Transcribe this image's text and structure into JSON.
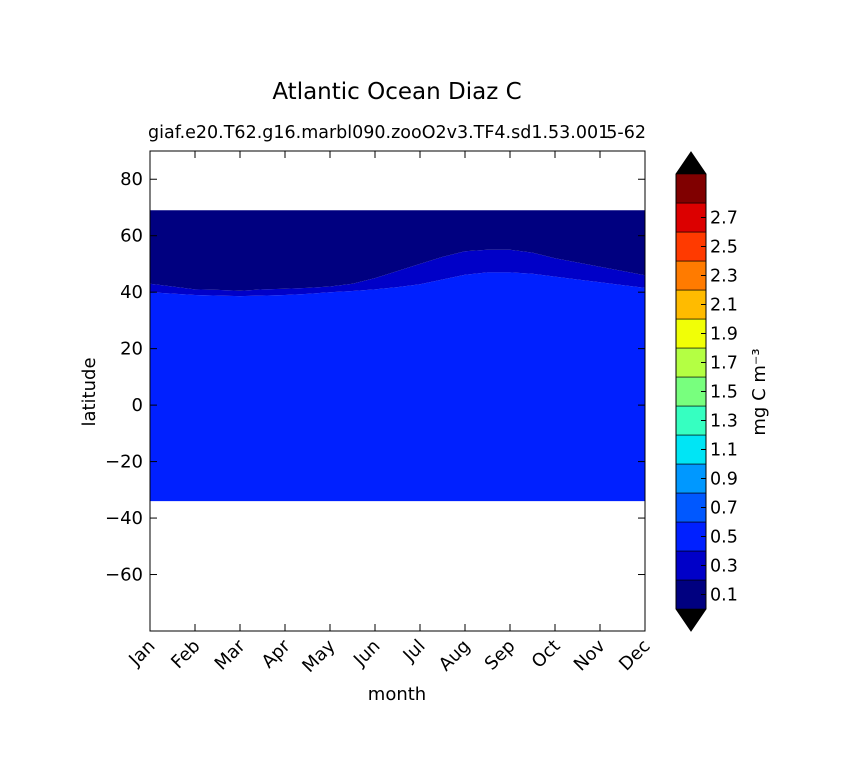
{
  "chart_data": {
    "type": "heatmap",
    "title": "Atlantic Ocean Diaz C",
    "subtitle_left": "giaf.e20.T62.g16.marbl090.zooO2v3.TF4.sd1.53.001",
    "subtitle_right": "5-62",
    "xlabel": "month",
    "ylabel": "latitude",
    "x_ticks": [
      "Jan",
      "Feb",
      "Mar",
      "Apr",
      "May",
      "Jun",
      "Jul",
      "Aug",
      "Sep",
      "Oct",
      "Nov",
      "Dec"
    ],
    "xlim": [
      0,
      11
    ],
    "ylim": [
      -80,
      90
    ],
    "y_ticks": [
      80,
      60,
      40,
      20,
      0,
      -20,
      -40,
      -60
    ],
    "y_tick_labels": [
      "80",
      "60",
      "40",
      "20",
      "0",
      "−20",
      "−40",
      "−60"
    ],
    "data_extent": {
      "lat_min": -34,
      "lat_max": 69
    },
    "fill_region": {
      "level": "0.3–0.5",
      "color": "#0020ff"
    },
    "boundary_region": {
      "level": "0.1–0.3",
      "color": "#0000c8",
      "upper_edge": [
        [
          0,
          43
        ],
        [
          0.5,
          42
        ],
        [
          1,
          41
        ],
        [
          1.5,
          40.8
        ],
        [
          2,
          40.5
        ],
        [
          2.5,
          41
        ],
        [
          3,
          41.2
        ],
        [
          3.5,
          41.5
        ],
        [
          4,
          42
        ],
        [
          4.5,
          43
        ],
        [
          5,
          45
        ],
        [
          5.5,
          47.5
        ],
        [
          6,
          50
        ],
        [
          6.5,
          52.5
        ],
        [
          7,
          54.5
        ],
        [
          7.5,
          55
        ],
        [
          8,
          55
        ],
        [
          8.5,
          54
        ],
        [
          9,
          52
        ],
        [
          9.5,
          50.5
        ],
        [
          10,
          49
        ],
        [
          10.5,
          47.5
        ],
        [
          11,
          46
        ]
      ],
      "lower_edge": [
        [
          0,
          40
        ],
        [
          0.5,
          39.5
        ],
        [
          1,
          39
        ],
        [
          1.5,
          38.8
        ],
        [
          2,
          38.6
        ],
        [
          2.5,
          38.8
        ],
        [
          3,
          39
        ],
        [
          3.5,
          39.4
        ],
        [
          4,
          40
        ],
        [
          4.5,
          40.4
        ],
        [
          5,
          41
        ],
        [
          5.5,
          41.8
        ],
        [
          6,
          42.8
        ],
        [
          6.5,
          44.5
        ],
        [
          7,
          46.2
        ],
        [
          7.5,
          47
        ],
        [
          8,
          47
        ],
        [
          8.5,
          46.5
        ],
        [
          9,
          45.5
        ],
        [
          9.5,
          44.5
        ],
        [
          10,
          43.5
        ],
        [
          10.5,
          42.5
        ],
        [
          11,
          41.5
        ]
      ]
    },
    "top_region": {
      "level": "< 0.1",
      "color": "#000080"
    },
    "colorbar": {
      "label": "mg C m⁻³",
      "extend": "both",
      "extend_low_color": "#000000",
      "extend_high_color": "#000000",
      "levels": [
        0,
        0.2,
        0.4,
        0.6,
        0.8,
        1.0,
        1.2,
        1.4,
        1.6,
        1.8,
        2.0,
        2.2,
        2.4,
        2.6,
        2.8
      ],
      "colors": [
        "#000080",
        "#0000c8",
        "#0020ff",
        "#0058ff",
        "#0098ff",
        "#00e5f5",
        "#36ffc1",
        "#78ff7e",
        "#b4ff43",
        "#f1ff06",
        "#ffbb00",
        "#ff7b00",
        "#ff3a00",
        "#dc0000",
        "#800000"
      ],
      "tick_values": [
        0.1,
        0.3,
        0.5,
        0.7,
        0.9,
        1.1,
        1.3,
        1.5,
        1.7,
        1.9,
        2.1,
        2.3,
        2.5,
        2.7
      ],
      "tick_labels": [
        "0.1",
        "0.3",
        "0.5",
        "0.7",
        "0.9",
        "1.1",
        "1.3",
        "1.5",
        "1.7",
        "1.9",
        "2.1",
        "2.3",
        "2.5",
        "2.7"
      ]
    }
  }
}
